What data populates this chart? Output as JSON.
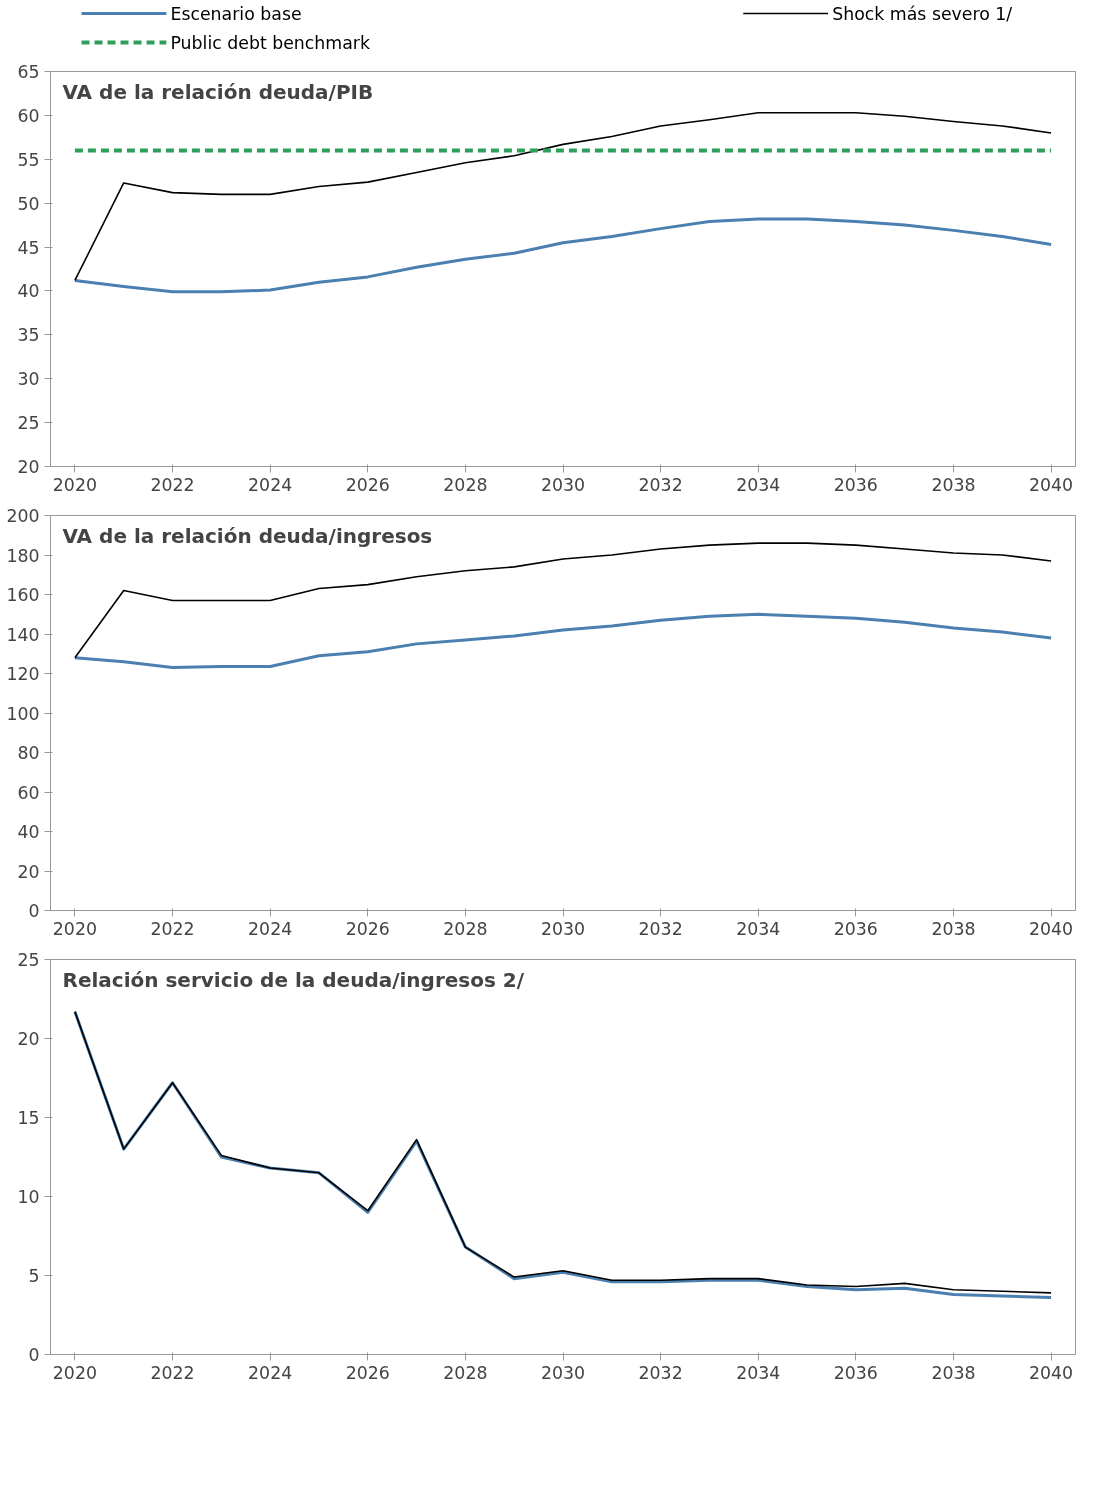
{
  "chart_data": [
    {
      "type": "line",
      "title": "VA de la relación deuda/PIB",
      "categories": [
        "2020",
        null,
        "2022",
        null,
        "2024",
        null,
        "2026",
        null,
        "2028",
        null,
        "2030",
        null,
        "2032",
        null,
        "2034",
        null,
        "2036",
        null,
        "2038",
        null,
        "2040"
      ],
      "ylim": [
        20,
        65
      ],
      "yticks": [
        20,
        25,
        30,
        35,
        40,
        45,
        50,
        55,
        60,
        65
      ],
      "grid": false,
      "legend": "top",
      "series": [
        {
          "name": "Escenario base",
          "color": "#4a7fb0",
          "values": [
            41.2,
            40.5,
            39.9,
            39.9,
            40.1,
            41.0,
            41.6,
            42.7,
            43.6,
            44.3,
            45.5,
            46.2,
            47.1,
            47.9,
            48.2,
            48.2,
            47.9,
            47.5,
            46.9,
            46.2,
            45.3
          ]
        },
        {
          "name": "Shock más severo  1/",
          "color": "#000000",
          "values": [
            41.2,
            52.3,
            51.2,
            51.0,
            51.0,
            51.9,
            52.4,
            53.5,
            54.6,
            55.4,
            56.7,
            57.6,
            58.8,
            59.5,
            60.3,
            60.3,
            60.3,
            59.9,
            59.3,
            58.8,
            58.0
          ]
        },
        {
          "name": "Public debt benchmark",
          "color": "#2e9e5b",
          "line_style": "dashed",
          "values": [
            56,
            56,
            56,
            56,
            56,
            56,
            56,
            56,
            56,
            56,
            56,
            56,
            56,
            56,
            56,
            56,
            56,
            56,
            56,
            56,
            56
          ]
        }
      ]
    },
    {
      "type": "line",
      "title": "VA de la relación deuda/ingresos",
      "categories": [
        "2020",
        null,
        "2022",
        null,
        "2024",
        null,
        "2026",
        null,
        "2028",
        null,
        "2030",
        null,
        "2032",
        null,
        "2034",
        null,
        "2036",
        null,
        "2038",
        null,
        "2040"
      ],
      "ylim": [
        0,
        200
      ],
      "yticks": [
        0,
        20,
        40,
        60,
        80,
        100,
        120,
        140,
        160,
        180,
        200
      ],
      "grid": false,
      "series": [
        {
          "color": "#4a7fb0",
          "values": [
            128,
            126,
            123,
            123.5,
            123.5,
            129,
            131,
            135,
            137,
            139,
            142,
            144,
            147,
            149,
            150,
            149,
            148,
            146,
            143,
            141,
            138
          ]
        },
        {
          "color": "#000000",
          "values": [
            128,
            162,
            157,
            157,
            157,
            163,
            165,
            169,
            172,
            174,
            178,
            180,
            183,
            185,
            186,
            186,
            185,
            183,
            181,
            180,
            177
          ]
        }
      ]
    },
    {
      "type": "line",
      "title": "Relación servicio de la deuda/ingresos 2/",
      "categories": [
        "2020",
        null,
        "2022",
        null,
        "2024",
        null,
        "2026",
        null,
        "2028",
        null,
        "2030",
        null,
        "2032",
        null,
        "2034",
        null,
        "2036",
        null,
        "2038",
        null,
        "2040"
      ],
      "ylim": [
        0,
        25
      ],
      "yticks": [
        0,
        5,
        10,
        15,
        20,
        25
      ],
      "grid": false,
      "series": [
        {
          "color": "#4a7fb0",
          "values": [
            21.7,
            13.0,
            17.2,
            12.5,
            11.8,
            11.5,
            9.0,
            13.5,
            6.8,
            4.8,
            5.2,
            4.6,
            4.6,
            4.7,
            4.7,
            4.3,
            4.1,
            4.2,
            3.8,
            3.7,
            3.6
          ]
        },
        {
          "color": "#000000",
          "values": [
            21.7,
            13.0,
            17.2,
            12.6,
            11.8,
            11.5,
            9.1,
            13.6,
            6.8,
            4.9,
            5.3,
            4.7,
            4.7,
            4.8,
            4.8,
            4.4,
            4.3,
            4.5,
            4.1,
            4.0,
            3.9
          ]
        }
      ]
    }
  ]
}
